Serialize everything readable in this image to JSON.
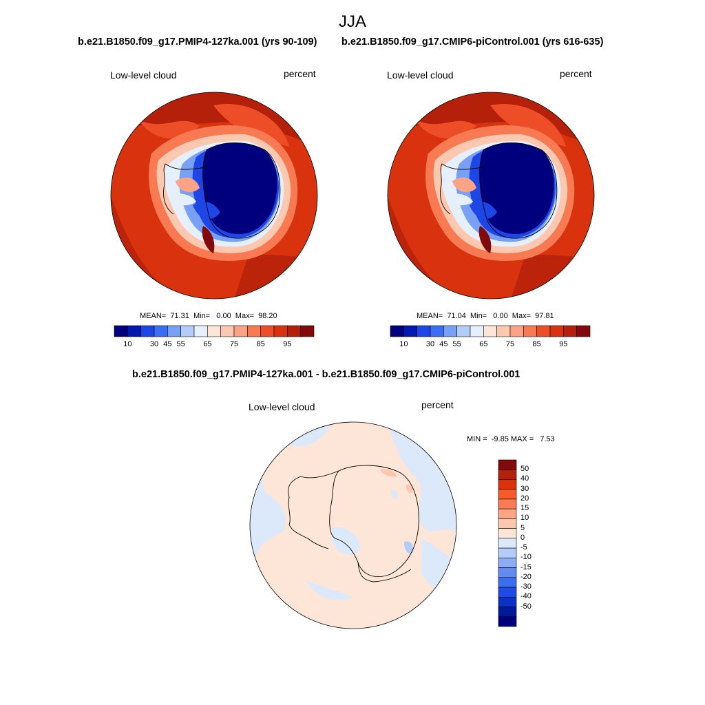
{
  "figure": {
    "season": "JJA"
  },
  "panels": [
    {
      "title": "b.e21.B1850.f09_g17.PMIP4-127ka.001 (yrs 90-109)",
      "left_label": "Low-level cloud",
      "right_label": "percent",
      "stats": "MEAN=  71.31  Min=   0.00  Max=  98.20"
    },
    {
      "title": "b.e21.B1850.f09_g17.CMIP6-piControl.001 (yrs 616-635)",
      "left_label": "Low-level cloud",
      "right_label": "percent",
      "stats": "MEAN=  71.04  Min=   0.00  Max=  97.81"
    }
  ],
  "diff_panel": {
    "title": "b.e21.B1850.f09_g17.PMIP4-127ka.001 - b.e21.B1850.f09_g17.CMIP6-piControl.001",
    "left_label": "Low-level cloud",
    "right_label": "percent",
    "stats": "MIN =  -9.85 MAX =   7.53"
  },
  "abs_colorbar": {
    "colors": [
      "#00007f",
      "#0019b0",
      "#1e46e6",
      "#3c6ef5",
      "#78a0f5",
      "#b4ccf8",
      "#e6f0fc",
      "#fde6d8",
      "#fcc8af",
      "#fba386",
      "#f77a53",
      "#ee4e27",
      "#d8320e",
      "#b4200a",
      "#820a0a"
    ],
    "tick_labels": [
      "10",
      "30",
      "45",
      "55",
      "65",
      "75",
      "85",
      "95"
    ]
  },
  "diff_colorbar": {
    "colors": [
      "#820a0a",
      "#b4200a",
      "#dc320c",
      "#fa5a28",
      "#fb7c54",
      "#fca584",
      "#fdc6ae",
      "#fde6d8",
      "#dbe9fa",
      "#b4ccf8",
      "#8cadf5",
      "#648cf0",
      "#3c6ef0",
      "#1e4be6",
      "#0a32c8",
      "#001a9a",
      "#00007f"
    ],
    "tick_labels": [
      "50",
      "40",
      "30",
      "20",
      "15",
      "10",
      "5",
      "0",
      "-5",
      "-10",
      "-15",
      "-20",
      "-30",
      "-40",
      "-50"
    ]
  }
}
